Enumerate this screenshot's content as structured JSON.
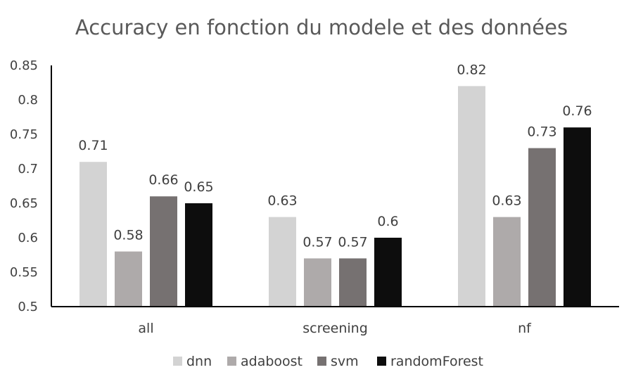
{
  "chart_data": {
    "type": "bar",
    "title": "Accuracy en fonction du modele et des données",
    "xlabel": "",
    "ylabel": "",
    "categories": [
      "all",
      "screening",
      "nf"
    ],
    "series": [
      {
        "name": "dnn",
        "color": "#d3d3d3",
        "values": [
          0.71,
          0.63,
          0.82
        ],
        "labels": [
          "0.71",
          "0.63",
          "0.82"
        ]
      },
      {
        "name": "adaboost",
        "color": "#aeaaaa",
        "values": [
          0.58,
          0.57,
          0.63
        ],
        "labels": [
          "0.58",
          "0.57",
          "0.63"
        ]
      },
      {
        "name": "svm",
        "color": "#767171",
        "values": [
          0.66,
          0.57,
          0.73
        ],
        "labels": [
          "0.66",
          "0.57",
          "0.73"
        ]
      },
      {
        "name": "randomForest",
        "color": "#0d0d0d",
        "values": [
          0.65,
          0.6,
          0.76
        ],
        "labels": [
          "0.65",
          "0.6",
          "0.76"
        ]
      }
    ],
    "ylim": [
      0.5,
      0.85
    ],
    "yticks": [
      "0.5",
      "0.55",
      "0.6",
      "0.65",
      "0.7",
      "0.75",
      "0.8",
      "0.85"
    ],
    "grid": false,
    "legend_position": "bottom"
  }
}
